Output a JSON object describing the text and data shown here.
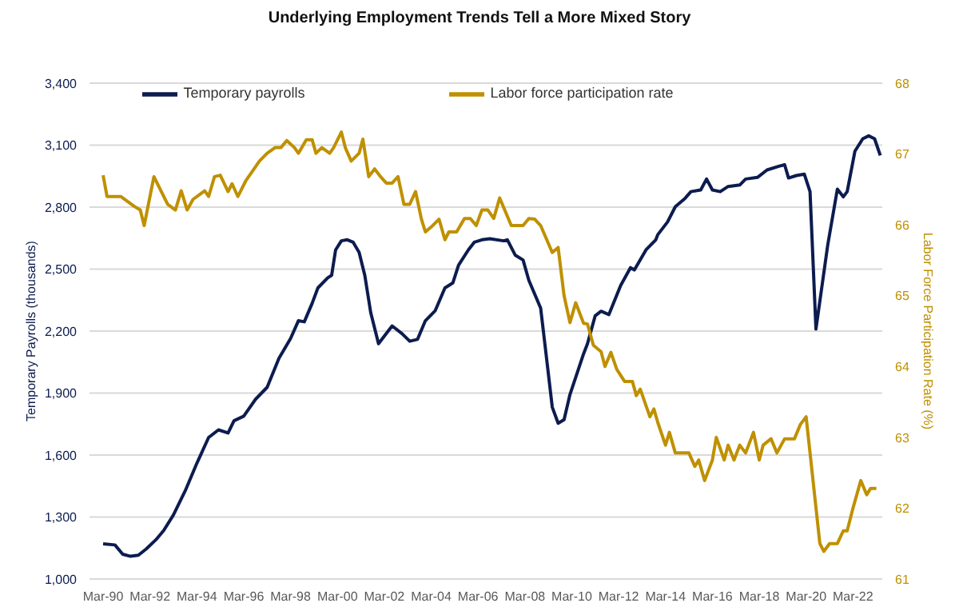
{
  "chart_data": {
    "type": "line",
    "title": "Underlying Employment Trends Tell a More Mixed Story",
    "ylabel": "Temporary Payrolls (thousands)",
    "y2label": "Labor Force Participation Rate (%)",
    "xlim": [
      "1989-08",
      "2023-06"
    ],
    "xticks": [
      {
        "value": "1990-03",
        "label": "Mar-90"
      },
      {
        "value": "1992-03",
        "label": "Mar-92"
      },
      {
        "value": "1994-03",
        "label": "Mar-94"
      },
      {
        "value": "1996-03",
        "label": "Mar-96"
      },
      {
        "value": "1998-03",
        "label": "Mar-98"
      },
      {
        "value": "2000-03",
        "label": "Mar-00"
      },
      {
        "value": "2002-03",
        "label": "Mar-02"
      },
      {
        "value": "2004-03",
        "label": "Mar-04"
      },
      {
        "value": "2006-03",
        "label": "Mar-06"
      },
      {
        "value": "2008-03",
        "label": "Mar-08"
      },
      {
        "value": "2010-03",
        "label": "Mar-10"
      },
      {
        "value": "2012-03",
        "label": "Mar-12"
      },
      {
        "value": "2014-03",
        "label": "Mar-14"
      },
      {
        "value": "2016-03",
        "label": "Mar-16"
      },
      {
        "value": "2018-03",
        "label": "Mar-18"
      },
      {
        "value": "2020-03",
        "label": "Mar-20"
      },
      {
        "value": "2022-03",
        "label": "Mar-22"
      }
    ],
    "ylim": [
      1000,
      3400
    ],
    "yticks": [
      {
        "value": 1000,
        "label": "1,000"
      },
      {
        "value": 1300,
        "label": "1,300"
      },
      {
        "value": 1600,
        "label": "1,600"
      },
      {
        "value": 1900,
        "label": "1,900"
      },
      {
        "value": 2200,
        "label": "2,200"
      },
      {
        "value": 2500,
        "label": "2,500"
      },
      {
        "value": 2800,
        "label": "2,800"
      },
      {
        "value": 3100,
        "label": "3,100"
      },
      {
        "value": 3400,
        "label": "3,400"
      }
    ],
    "y2lim": [
      61,
      68
    ],
    "y2ticks": [
      61,
      62,
      63,
      64,
      65,
      66,
      67,
      68
    ],
    "grid": "y",
    "legend": "top",
    "marker": "none",
    "line_style": "solid",
    "series": [
      {
        "name": "Temporary payrolls",
        "color": "#0c1c4f",
        "x": [
          "1990-03",
          "1990-09",
          "1991-01",
          "1991-05",
          "1991-09",
          "1992-01",
          "1992-06",
          "1992-10",
          "1993-03",
          "1993-09",
          "1994-03",
          "1994-09",
          "1995-02",
          "1995-07",
          "1995-10",
          "1996-03",
          "1996-09",
          "1997-03",
          "1997-09",
          "1998-03",
          "1998-07",
          "1998-10",
          "1999-02",
          "1999-05",
          "1999-10",
          "1999-12",
          "2000-02",
          "2000-05",
          "2000-08",
          "2000-11",
          "2001-02",
          "2001-05",
          "2001-08",
          "2001-12",
          "2002-07",
          "2002-12",
          "2003-04",
          "2003-08",
          "2003-12",
          "2004-05",
          "2004-10",
          "2005-02",
          "2005-05",
          "2005-10",
          "2006-01",
          "2006-05",
          "2006-09",
          "2007-04",
          "2007-06",
          "2007-10",
          "2008-02",
          "2008-05",
          "2008-11",
          "2009-01",
          "2009-05",
          "2009-08",
          "2009-11",
          "2010-02",
          "2010-09",
          "2010-11",
          "2011-03",
          "2011-06",
          "2011-10",
          "2012-04",
          "2012-09",
          "2012-11",
          "2013-05",
          "2013-10",
          "2013-11",
          "2014-04",
          "2014-08",
          "2015-01",
          "2015-04",
          "2015-09",
          "2015-12",
          "2016-03",
          "2016-07",
          "2016-11",
          "2017-05",
          "2017-08",
          "2018-02",
          "2018-07",
          "2019-01",
          "2019-04",
          "2019-06",
          "2019-10",
          "2020-02",
          "2020-05",
          "2020-08",
          "2021-02",
          "2021-07",
          "2021-10",
          "2021-12",
          "2022-04",
          "2022-08",
          "2022-11",
          "2023-02",
          "2023-05"
        ],
        "values": [
          1170,
          1165,
          1120,
          1110,
          1115,
          1145,
          1190,
          1235,
          1310,
          1427,
          1560,
          1685,
          1722,
          1707,
          1766,
          1788,
          1870,
          1928,
          2068,
          2164,
          2250,
          2245,
          2335,
          2409,
          2458,
          2470,
          2593,
          2637,
          2642,
          2630,
          2581,
          2470,
          2290,
          2139,
          2225,
          2188,
          2151,
          2160,
          2250,
          2298,
          2409,
          2433,
          2519,
          2593,
          2630,
          2642,
          2647,
          2637,
          2642,
          2568,
          2544,
          2446,
          2311,
          2151,
          1832,
          1754,
          1771,
          1893,
          2090,
          2139,
          2274,
          2296,
          2280,
          2421,
          2507,
          2496,
          2593,
          2642,
          2667,
          2728,
          2802,
          2843,
          2875,
          2883,
          2936,
          2883,
          2875,
          2900,
          2907,
          2936,
          2944,
          2980,
          2998,
          3005,
          2941,
          2953,
          2960,
          2875,
          2210,
          2617,
          2887,
          2850,
          2875,
          3071,
          3131,
          3145,
          3131,
          3050
        ]
      },
      {
        "name": "Labor force participation rate",
        "color": "#bf9000",
        "axis": "y2",
        "x": [
          "1990-03",
          "1990-05",
          "1990-12",
          "1991-07",
          "1991-10",
          "1991-12",
          "1992-05",
          "1992-12",
          "1993-04",
          "1993-07",
          "1993-10",
          "1994-01",
          "1994-07",
          "1994-09",
          "1994-12",
          "1995-03",
          "1995-07",
          "1995-09",
          "1995-12",
          "1996-04",
          "1996-06",
          "1996-11",
          "1997-03",
          "1997-07",
          "1997-10",
          "1998-01",
          "1998-05",
          "1998-07",
          "1998-11",
          "1999-02",
          "1999-04",
          "1999-07",
          "1999-11",
          "2000-01",
          "2000-05",
          "2000-07",
          "2000-10",
          "2001-02",
          "2001-04",
          "2001-07",
          "2001-10",
          "2002-01",
          "2002-04",
          "2002-07",
          "2002-10",
          "2003-01",
          "2003-04",
          "2003-07",
          "2003-10",
          "2003-12",
          "2004-03",
          "2004-07",
          "2004-10",
          "2004-12",
          "2005-04",
          "2005-08",
          "2005-11",
          "2006-02",
          "2006-05",
          "2006-08",
          "2006-11",
          "2007-02",
          "2007-08",
          "2008-02",
          "2008-05",
          "2008-08",
          "2008-11",
          "2009-05",
          "2009-08",
          "2009-11",
          "2010-02",
          "2010-05",
          "2010-09",
          "2010-11",
          "2011-02",
          "2011-06",
          "2011-08",
          "2011-11",
          "2012-02",
          "2012-06",
          "2012-10",
          "2012-12",
          "2013-02",
          "2013-07",
          "2013-09",
          "2013-11",
          "2014-03",
          "2014-05",
          "2014-08",
          "2015-03",
          "2015-06",
          "2015-08",
          "2015-11",
          "2016-03",
          "2016-05",
          "2016-09",
          "2016-11",
          "2017-02",
          "2017-05",
          "2017-08",
          "2017-12",
          "2018-03",
          "2018-05",
          "2018-09",
          "2018-12",
          "2019-04",
          "2019-09",
          "2019-12",
          "2020-03",
          "2020-10",
          "2020-12",
          "2021-03",
          "2021-07",
          "2021-10",
          "2021-12",
          "2022-03",
          "2022-07",
          "2022-10",
          "2022-12",
          "2023-03"
        ],
        "values": [
          66.7,
          66.4,
          66.4,
          66.26,
          66.21,
          65.99,
          66.68,
          66.29,
          66.21,
          66.48,
          66.21,
          66.36,
          66.48,
          66.4,
          66.68,
          66.7,
          66.47,
          66.58,
          66.4,
          66.62,
          66.7,
          66.9,
          67.01,
          67.09,
          67.09,
          67.19,
          67.09,
          67.01,
          67.2,
          67.2,
          67.01,
          67.09,
          67.01,
          67.09,
          67.31,
          67.09,
          66.9,
          67.01,
          67.21,
          66.68,
          66.79,
          66.68,
          66.59,
          66.59,
          66.68,
          66.29,
          66.29,
          66.47,
          66.08,
          65.9,
          65.97,
          66.08,
          65.79,
          65.9,
          65.9,
          66.09,
          66.09,
          65.99,
          66.21,
          66.21,
          66.09,
          66.38,
          65.99,
          65.99,
          66.09,
          66.08,
          65.99,
          65.61,
          65.68,
          65.0,
          64.62,
          64.9,
          64.61,
          64.6,
          64.3,
          64.21,
          64.0,
          64.2,
          63.96,
          63.79,
          63.79,
          63.59,
          63.68,
          63.29,
          63.4,
          63.21,
          62.89,
          63.07,
          62.78,
          62.78,
          62.59,
          62.68,
          62.39,
          62.68,
          63.0,
          62.68,
          62.89,
          62.68,
          62.89,
          62.78,
          63.07,
          62.68,
          62.89,
          62.98,
          62.78,
          62.98,
          62.98,
          63.18,
          63.29,
          61.5,
          61.39,
          61.5,
          61.5,
          61.68,
          61.68,
          62.0,
          62.39,
          62.19,
          62.28,
          62.28
        ]
      }
    ]
  }
}
